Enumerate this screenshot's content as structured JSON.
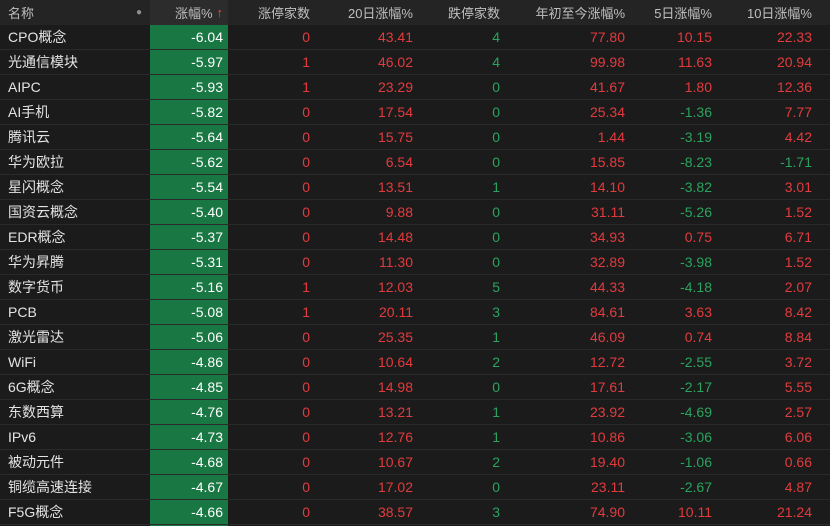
{
  "palette": {
    "page_bg": "#1b1b1b",
    "header_bg": "#242424",
    "sorted_header_bg": "#2c2c2c",
    "row_separator": "#2a2a2a",
    "red": "#e23b3e",
    "green": "#2aa35e",
    "change_cell_bg": "#187742",
    "change_cell_text": "#ffffff",
    "name_text": "#e3e3e3",
    "header_text": "#bfbfbf",
    "dot_color": "#8f8f8f",
    "sort_arrow_color": "#ee4e25"
  },
  "header": {
    "name_label": "名称",
    "dot_icon": "●",
    "sort_arrow_icon": "↑",
    "columns": [
      {
        "key": "change",
        "label": "涨幅%",
        "sorted": "ascending",
        "color_rule": "change"
      },
      {
        "key": "limit_up",
        "label": "涨停家数",
        "color_rule": "always_red"
      },
      {
        "key": "d20",
        "label": "20日涨幅%",
        "color_rule": "sign"
      },
      {
        "key": "limit_down",
        "label": "跌停家数",
        "color_rule": "always_green"
      },
      {
        "key": "ytd",
        "label": "年初至今涨幅%",
        "color_rule": "sign"
      },
      {
        "key": "d5",
        "label": "5日涨幅%",
        "color_rule": "sign"
      },
      {
        "key": "d10",
        "label": "10日涨幅%",
        "color_rule": "sign"
      }
    ]
  },
  "table": {
    "rows": [
      {
        "name": "CPO概念",
        "change": "-6.04",
        "limit_up": "0",
        "d20": "43.41",
        "limit_down": "4",
        "ytd": "77.80",
        "d5": "10.15",
        "d10": "22.33"
      },
      {
        "name": "光通信模块",
        "change": "-5.97",
        "limit_up": "1",
        "d20": "46.02",
        "limit_down": "4",
        "ytd": "99.98",
        "d5": "11.63",
        "d10": "20.94"
      },
      {
        "name": "AIPC",
        "change": "-5.93",
        "limit_up": "1",
        "d20": "23.29",
        "limit_down": "0",
        "ytd": "41.67",
        "d5": "1.80",
        "d10": "12.36"
      },
      {
        "name": "AI手机",
        "change": "-5.82",
        "limit_up": "0",
        "d20": "17.54",
        "limit_down": "0",
        "ytd": "25.34",
        "d5": "-1.36",
        "d10": "7.77"
      },
      {
        "name": "腾讯云",
        "change": "-5.64",
        "limit_up": "0",
        "d20": "15.75",
        "limit_down": "0",
        "ytd": "1.44",
        "d5": "-3.19",
        "d10": "4.42"
      },
      {
        "name": "华为欧拉",
        "change": "-5.62",
        "limit_up": "0",
        "d20": "6.54",
        "limit_down": "0",
        "ytd": "15.85",
        "d5": "-8.23",
        "d10": "-1.71"
      },
      {
        "name": "星闪概念",
        "change": "-5.54",
        "limit_up": "0",
        "d20": "13.51",
        "limit_down": "1",
        "ytd": "14.10",
        "d5": "-3.82",
        "d10": "3.01"
      },
      {
        "name": "国资云概念",
        "change": "-5.40",
        "limit_up": "0",
        "d20": "9.88",
        "limit_down": "0",
        "ytd": "31.11",
        "d5": "-5.26",
        "d10": "1.52"
      },
      {
        "name": "EDR概念",
        "change": "-5.37",
        "limit_up": "0",
        "d20": "14.48",
        "limit_down": "0",
        "ytd": "34.93",
        "d5": "0.75",
        "d10": "6.71"
      },
      {
        "name": "华为昇腾",
        "change": "-5.31",
        "limit_up": "0",
        "d20": "11.30",
        "limit_down": "0",
        "ytd": "32.89",
        "d5": "-3.98",
        "d10": "1.52"
      },
      {
        "name": "数字货币",
        "change": "-5.16",
        "limit_up": "1",
        "d20": "12.03",
        "limit_down": "5",
        "ytd": "44.33",
        "d5": "-4.18",
        "d10": "2.07"
      },
      {
        "name": "PCB",
        "change": "-5.08",
        "limit_up": "1",
        "d20": "20.11",
        "limit_down": "3",
        "ytd": "84.61",
        "d5": "3.63",
        "d10": "8.42"
      },
      {
        "name": "激光雷达",
        "change": "-5.06",
        "limit_up": "0",
        "d20": "25.35",
        "limit_down": "1",
        "ytd": "46.09",
        "d5": "0.74",
        "d10": "8.84"
      },
      {
        "name": "WiFi",
        "change": "-4.86",
        "limit_up": "0",
        "d20": "10.64",
        "limit_down": "2",
        "ytd": "12.72",
        "d5": "-2.55",
        "d10": "3.72"
      },
      {
        "name": "6G概念",
        "change": "-4.85",
        "limit_up": "0",
        "d20": "14.98",
        "limit_down": "0",
        "ytd": "17.61",
        "d5": "-2.17",
        "d10": "5.55"
      },
      {
        "name": "东数西算",
        "change": "-4.76",
        "limit_up": "0",
        "d20": "13.21",
        "limit_down": "1",
        "ytd": "23.92",
        "d5": "-4.69",
        "d10": "2.57"
      },
      {
        "name": "IPv6",
        "change": "-4.73",
        "limit_up": "0",
        "d20": "12.76",
        "limit_down": "1",
        "ytd": "10.86",
        "d5": "-3.06",
        "d10": "6.06"
      },
      {
        "name": "被动元件",
        "change": "-4.68",
        "limit_up": "0",
        "d20": "10.67",
        "limit_down": "2",
        "ytd": "19.40",
        "d5": "-1.06",
        "d10": "0.66"
      },
      {
        "name": "铜缆高速连接",
        "change": "-4.67",
        "limit_up": "0",
        "d20": "17.02",
        "limit_down": "0",
        "ytd": "23.11",
        "d5": "-2.67",
        "d10": "4.87"
      },
      {
        "name": "F5G概念",
        "change": "-4.66",
        "limit_up": "0",
        "d20": "38.57",
        "limit_down": "3",
        "ytd": "74.90",
        "d5": "10.11",
        "d10": "21.24"
      }
    ]
  }
}
